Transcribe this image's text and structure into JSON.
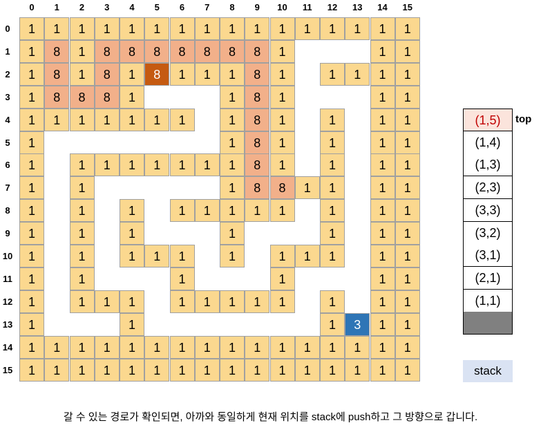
{
  "column_headers": [
    "0",
    "1",
    "2",
    "3",
    "4",
    "5",
    "6",
    "7",
    "8",
    "9",
    "10",
    "11",
    "12",
    "13",
    "14",
    "15"
  ],
  "row_headers": [
    "0",
    "1",
    "2",
    "3",
    "4",
    "5",
    "6",
    "7",
    "8",
    "9",
    "10",
    "11",
    "12",
    "13",
    "14",
    "15"
  ],
  "maze": [
    [
      "1",
      "1",
      "1",
      "1",
      "1",
      "1",
      "1",
      "1",
      "1",
      "1",
      "1",
      "1",
      "1",
      "1",
      "1",
      "1"
    ],
    [
      "1",
      "8",
      "1",
      "8",
      "8",
      "8",
      "8",
      "8",
      "8",
      "8",
      "1",
      "0",
      "0",
      "0",
      "1",
      "1"
    ],
    [
      "1",
      "8",
      "1",
      "8",
      "1",
      "@",
      "1",
      "1",
      "1",
      "8",
      "1",
      "0",
      "1",
      "1",
      "1",
      "1"
    ],
    [
      "1",
      "8",
      "8",
      "8",
      "1",
      "0",
      "0",
      "0",
      "1",
      "8",
      "1",
      "0",
      "0",
      "0",
      "1",
      "1"
    ],
    [
      "1",
      "1",
      "1",
      "1",
      "1",
      "1",
      "1",
      "0",
      "1",
      "8",
      "1",
      "0",
      "1",
      "0",
      "1",
      "1"
    ],
    [
      "1",
      "0",
      "0",
      "0",
      "0",
      "0",
      "0",
      "0",
      "1",
      "8",
      "1",
      "0",
      "1",
      "0",
      "1",
      "1"
    ],
    [
      "1",
      "0",
      "1",
      "1",
      "1",
      "1",
      "1",
      "1",
      "1",
      "8",
      "1",
      "0",
      "1",
      "0",
      "1",
      "1"
    ],
    [
      "1",
      "0",
      "1",
      "0",
      "0",
      "0",
      "0",
      "0",
      "1",
      "8",
      "8",
      "1",
      "1",
      "0",
      "1",
      "1"
    ],
    [
      "1",
      "0",
      "1",
      "0",
      "1",
      "0",
      "1",
      "1",
      "1",
      "1",
      "1",
      "0",
      "1",
      "0",
      "1",
      "1"
    ],
    [
      "1",
      "0",
      "1",
      "0",
      "1",
      "0",
      "0",
      "0",
      "1",
      "0",
      "0",
      "0",
      "1",
      "0",
      "1",
      "1"
    ],
    [
      "1",
      "0",
      "1",
      "0",
      "1",
      "1",
      "1",
      "0",
      "1",
      "0",
      "1",
      "1",
      "1",
      "0",
      "1",
      "1"
    ],
    [
      "1",
      "0",
      "1",
      "0",
      "0",
      "0",
      "1",
      "0",
      "0",
      "0",
      "1",
      "0",
      "0",
      "0",
      "1",
      "1"
    ],
    [
      "1",
      "0",
      "1",
      "1",
      "1",
      "0",
      "1",
      "1",
      "1",
      "1",
      "1",
      "0",
      "1",
      "0",
      "1",
      "1"
    ],
    [
      "1",
      "0",
      "0",
      "0",
      "1",
      "0",
      "0",
      "0",
      "0",
      "0",
      "0",
      "0",
      "1",
      "3",
      "1",
      "1"
    ],
    [
      "1",
      "1",
      "1",
      "1",
      "1",
      "1",
      "1",
      "1",
      "1",
      "1",
      "1",
      "1",
      "1",
      "1",
      "1",
      "1"
    ],
    [
      "1",
      "1",
      "1",
      "1",
      "1",
      "1",
      "1",
      "1",
      "1",
      "1",
      "1",
      "1",
      "1",
      "1",
      "1",
      "1"
    ]
  ],
  "colors": {
    "wall": "#fbd88f",
    "visited": "#f2b08a",
    "current": "#c55a11",
    "goal": "#2e75b6",
    "stack_top": "#fbe4dc",
    "stack_top_text": "#c00000",
    "stack_base": "#808080",
    "stack_label_bg": "#dae3f3"
  },
  "stack": {
    "entries": [
      "(1,5)",
      "(1,4)",
      "(1,3)",
      "(2,3)",
      "(3,3)",
      "(3,2)",
      "(3,1)",
      "(2,1)",
      "(1,1)"
    ],
    "top_label": "top",
    "label": "stack"
  },
  "caption": "갈 수 있는 경로가 확인되면, 아까와 동일하게 현재 위치를 stack에 push하고 그 방향으로 갑니다."
}
